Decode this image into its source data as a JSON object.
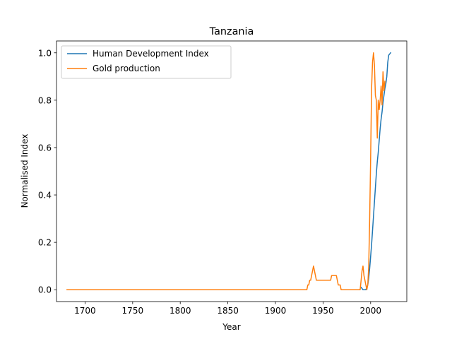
{
  "chart_data": {
    "type": "line",
    "title": "Tanzania",
    "xlabel": "Year",
    "ylabel": "Normalised Index",
    "xlim": [
      1670,
      2038
    ],
    "ylim": [
      -0.05,
      1.05
    ],
    "xticks": [
      1700,
      1750,
      1800,
      1850,
      1900,
      1950,
      2000
    ],
    "yticks": [
      0.0,
      0.2,
      0.4,
      0.6,
      0.8,
      1.0
    ],
    "xtick_labels": [
      "1700",
      "1750",
      "1800",
      "1850",
      "1900",
      "1950",
      "2000"
    ],
    "ytick_labels": [
      "0.0",
      "0.2",
      "0.4",
      "0.6",
      "0.8",
      "1.0"
    ],
    "grid": false,
    "legend_position": "top-left",
    "series": [
      {
        "name": "Human Development Index",
        "color": "#1f77b4",
        "x": [
          1990,
          1991,
          1992,
          1993,
          1994,
          1995,
          1996,
          1997,
          1998,
          1999,
          2000,
          2001,
          2002,
          2003,
          2004,
          2005,
          2006,
          2007,
          2008,
          2009,
          2010,
          2011,
          2012,
          2013,
          2014,
          2015,
          2016,
          2017,
          2018,
          2019,
          2020,
          2021
        ],
        "y": [
          0.01,
          0.005,
          0.0,
          0.0,
          0.0,
          0.0,
          0.01,
          0.02,
          0.05,
          0.09,
          0.14,
          0.19,
          0.25,
          0.31,
          0.37,
          0.43,
          0.49,
          0.54,
          0.58,
          0.63,
          0.68,
          0.72,
          0.75,
          0.79,
          0.82,
          0.85,
          0.87,
          0.9,
          0.96,
          0.99,
          0.995,
          1.0
        ]
      },
      {
        "name": "Gold production",
        "color": "#ff7f0e",
        "x": [
          1681,
          1700,
          1750,
          1800,
          1850,
          1900,
          1932,
          1933,
          1934,
          1935,
          1936,
          1937,
          1938,
          1939,
          1940,
          1941,
          1942,
          1943,
          1944,
          1945,
          1950,
          1955,
          1958,
          1959,
          1960,
          1961,
          1962,
          1963,
          1964,
          1965,
          1966,
          1967,
          1968,
          1969,
          1970,
          1975,
          1980,
          1985,
          1989,
          1990,
          1991,
          1992,
          1993,
          1994,
          1995,
          1996,
          1997,
          1998,
          1999,
          2000,
          2001,
          2002,
          2003,
          2004,
          2005,
          2006,
          2007,
          2008,
          2009,
          2010,
          2011,
          2012,
          2013,
          2014,
          2015
        ],
        "y": [
          0.0,
          0.0,
          0.0,
          0.0,
          0.0,
          0.0,
          0.0,
          0.0,
          0.02,
          0.02,
          0.04,
          0.04,
          0.06,
          0.08,
          0.1,
          0.08,
          0.06,
          0.04,
          0.04,
          0.04,
          0.04,
          0.04,
          0.04,
          0.06,
          0.06,
          0.06,
          0.06,
          0.06,
          0.06,
          0.04,
          0.02,
          0.02,
          0.02,
          0.0,
          0.0,
          0.0,
          0.0,
          0.0,
          0.0,
          0.04,
          0.08,
          0.1,
          0.06,
          0.04,
          0.02,
          0.0,
          0.02,
          0.1,
          0.3,
          0.55,
          0.85,
          0.96,
          1.0,
          0.95,
          0.82,
          0.8,
          0.64,
          0.8,
          0.76,
          0.8,
          0.86,
          0.78,
          0.92,
          0.84,
          0.88
        ]
      }
    ]
  }
}
